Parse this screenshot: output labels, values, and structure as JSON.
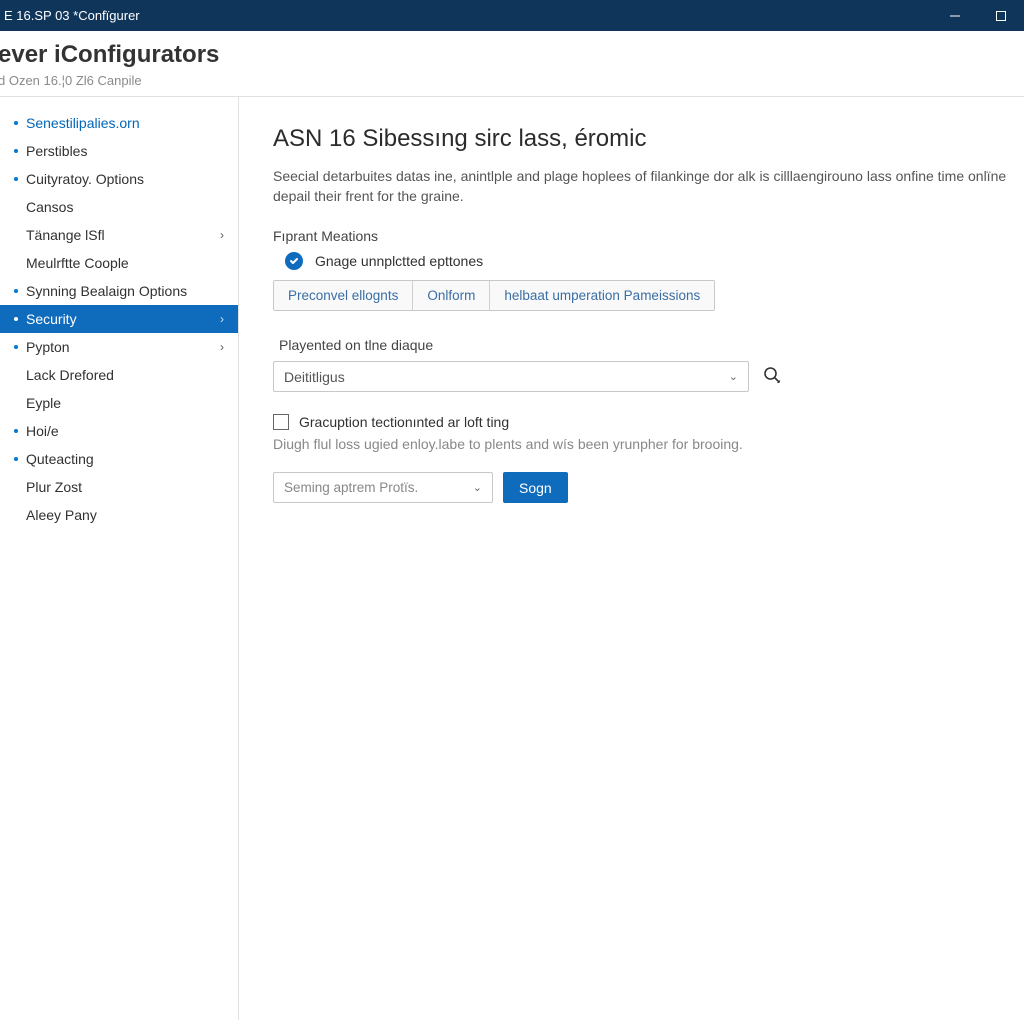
{
  "colors": {
    "titlebar_bg": "#10355b",
    "accent": "#0f6cbd",
    "link": "#0066b8",
    "border": "#e1e1e1",
    "text": "#323130",
    "muted": "#888888"
  },
  "window": {
    "title": "E 16.SP 03 *Confïgurer"
  },
  "header": {
    "title": "ever iConfigurators",
    "subtitle": "d Ozen 16.¦0 Zl6 Canpile"
  },
  "sidebar": {
    "items": [
      {
        "label": "Senestilipalies.orn",
        "link": true,
        "bullet": true,
        "chevron": false,
        "active": false
      },
      {
        "label": "Perstibles",
        "link": false,
        "bullet": true,
        "chevron": false,
        "active": false
      },
      {
        "label": "Cuityratoy. Options",
        "link": false,
        "bullet": true,
        "chevron": false,
        "active": false
      },
      {
        "label": "Cansos",
        "link": false,
        "bullet": false,
        "chevron": false,
        "active": false
      },
      {
        "label": "Tänange lSfl",
        "link": false,
        "bullet": false,
        "chevron": true,
        "active": false
      },
      {
        "label": "Meulrftte Coople",
        "link": false,
        "bullet": false,
        "chevron": false,
        "active": false
      },
      {
        "label": "Synning Bealaign Options",
        "link": false,
        "bullet": true,
        "chevron": false,
        "active": false
      },
      {
        "label": "Security",
        "link": false,
        "bullet": true,
        "chevron": true,
        "active": true
      },
      {
        "label": "Pypton",
        "link": false,
        "bullet": true,
        "chevron": true,
        "active": false
      },
      {
        "label": "Lack Drefored",
        "link": false,
        "bullet": false,
        "chevron": false,
        "active": false
      },
      {
        "label": "Eyple",
        "link": false,
        "bullet": false,
        "chevron": false,
        "active": false
      },
      {
        "label": "Hoi/e",
        "link": false,
        "bullet": true,
        "chevron": false,
        "active": false
      },
      {
        "label": "Quteacting",
        "link": false,
        "bullet": true,
        "chevron": false,
        "active": false
      },
      {
        "label": "Plur Zost",
        "link": false,
        "bullet": false,
        "chevron": false,
        "active": false
      },
      {
        "label": "Aleey Pany",
        "link": false,
        "bullet": false,
        "chevron": false,
        "active": false
      }
    ]
  },
  "main": {
    "title": "ASN 16 Sibessıng sirc lass, éromic",
    "description": "Seecial detarbuites datas ine, anintlple and plage hoplees of filankinge dor alk is cilllaengirouno lass onfine time onlïne depail their frent for the graine.",
    "section_label": "Fıprant Meations",
    "radio_label": "Gnage unnplctted epttones",
    "tabs": [
      {
        "label": "Preconvel ellognts"
      },
      {
        "label": "Onlform"
      },
      {
        "label": "helbaat umperation Pameissions"
      }
    ],
    "field_label": "Playented on tlne diaque",
    "select_value": "Deititligus",
    "checkbox_label": "Gracuption tectionınted ar loft ting",
    "hint": "Diugh flul loss ugied enloy.labe to plents and wís been yrunpher for brooing.",
    "action_select_placeholder": "Seming aptrem Protïs.",
    "action_button": "Sogn"
  }
}
